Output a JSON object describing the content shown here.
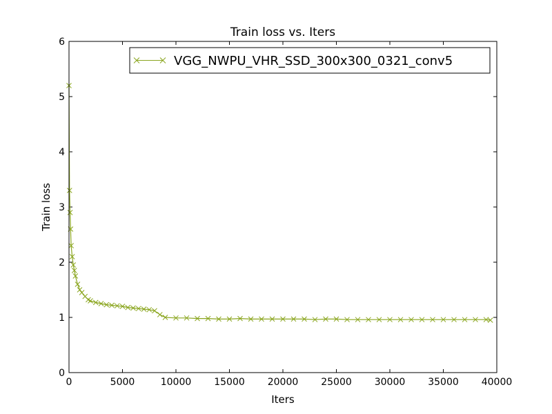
{
  "chart_data": {
    "type": "line",
    "title": "Train loss  vs. Iters",
    "xlabel": "Iters",
    "ylabel": "Train loss",
    "xlim": [
      0,
      40000
    ],
    "ylim": [
      0,
      6
    ],
    "xticks": [
      0,
      5000,
      10000,
      15000,
      20000,
      25000,
      30000,
      35000,
      40000
    ],
    "yticks": [
      0,
      1,
      2,
      3,
      4,
      5,
      6
    ],
    "grid": false,
    "legend_position": "top-right",
    "series": [
      {
        "name": "VGG_NWPU_VHR_SSD_300x300_0321_conv5",
        "color": "#8aa51e",
        "marker": "x",
        "x": [
          0,
          50,
          100,
          150,
          200,
          300,
          400,
          500,
          600,
          800,
          1000,
          1200,
          1500,
          1800,
          2000,
          2500,
          3000,
          3500,
          4000,
          4500,
          5000,
          5500,
          6000,
          6500,
          7000,
          7500,
          8000,
          8500,
          9000,
          10000,
          11000,
          12000,
          13000,
          14000,
          15000,
          16000,
          17000,
          18000,
          19000,
          20000,
          21000,
          22000,
          23000,
          24000,
          25000,
          26000,
          27000,
          28000,
          29000,
          30000,
          31000,
          32000,
          33000,
          34000,
          35000,
          36000,
          37000,
          38000,
          39000,
          39400
        ],
        "y": [
          5.2,
          3.3,
          2.9,
          2.6,
          2.3,
          2.1,
          1.95,
          1.85,
          1.75,
          1.6,
          1.5,
          1.45,
          1.38,
          1.32,
          1.3,
          1.27,
          1.25,
          1.23,
          1.22,
          1.21,
          1.2,
          1.18,
          1.17,
          1.16,
          1.15,
          1.14,
          1.12,
          1.05,
          1.0,
          0.99,
          0.99,
          0.98,
          0.98,
          0.97,
          0.97,
          0.98,
          0.97,
          0.97,
          0.97,
          0.97,
          0.97,
          0.97,
          0.96,
          0.97,
          0.97,
          0.96,
          0.96,
          0.96,
          0.96,
          0.96,
          0.96,
          0.96,
          0.96,
          0.96,
          0.96,
          0.96,
          0.96,
          0.96,
          0.96,
          0.95
        ]
      }
    ]
  }
}
